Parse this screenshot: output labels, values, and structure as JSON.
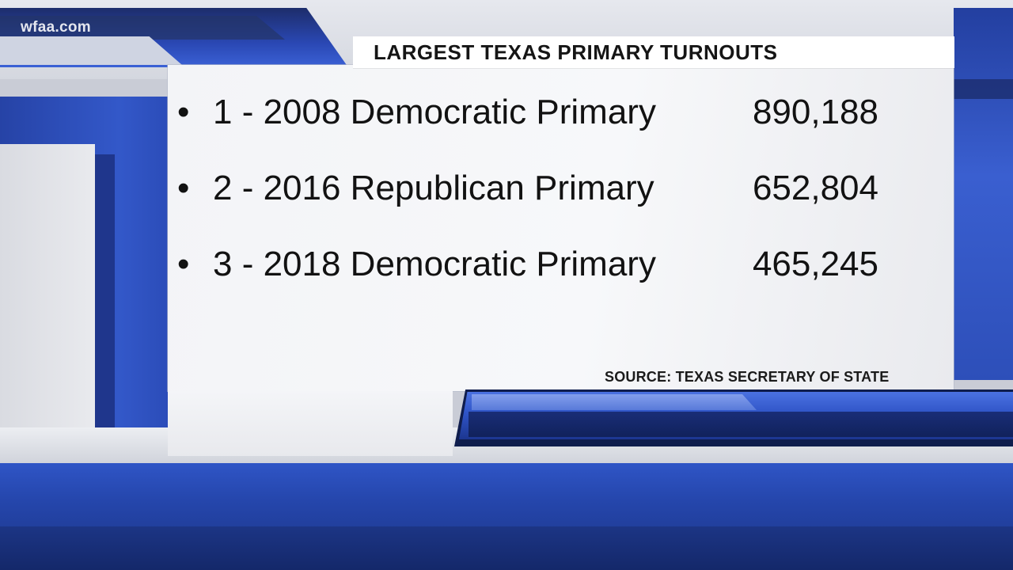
{
  "watermark": "wfaa.com",
  "title": "LARGEST TEXAS PRIMARY TURNOUTS",
  "items": [
    {
      "bullet": "•",
      "label": "1 - 2008 Democratic Primary",
      "value": "890,188"
    },
    {
      "bullet": "•",
      "label": "2 - 2016 Republican Primary",
      "value": "652,804"
    },
    {
      "bullet": "•",
      "label": "3 - 2018 Democratic Primary",
      "value": "465,245"
    }
  ],
  "source": "SOURCE: TEXAS SECRETARY OF STATE",
  "colors": {
    "brand_blue": "#2f55c6",
    "dark_blue": "#1b3486",
    "text": "#121212",
    "card": "#f4f5f8"
  }
}
